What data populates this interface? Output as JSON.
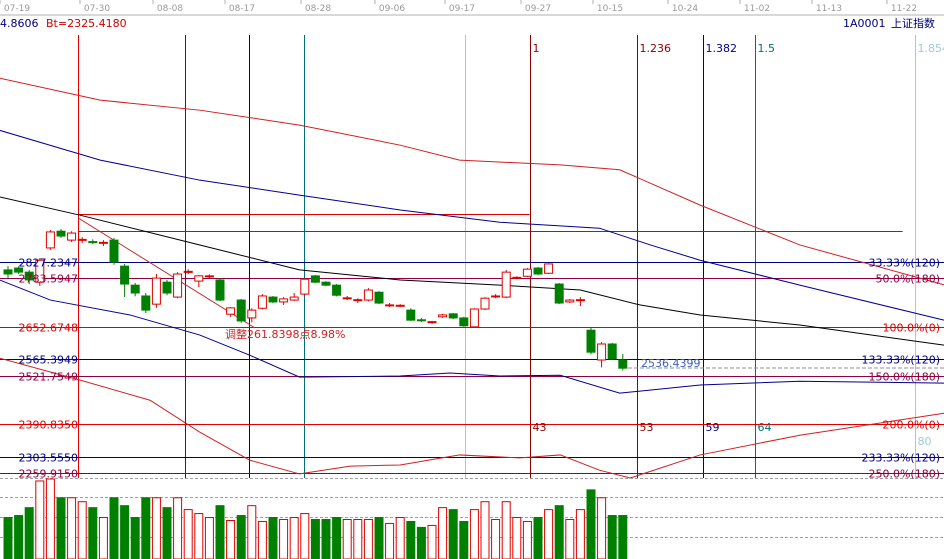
{
  "top_axis": {
    "dates": [
      "07-19",
      "07-30",
      "08-08",
      "08-17",
      "08-28",
      "09-06",
      "09-17",
      "09-27",
      "10-15",
      "10-24",
      "11-02",
      "11-13",
      "11-22"
    ]
  },
  "header": {
    "left_value": "4.8606",
    "bt_label": "Bt=2325.4180",
    "code": "1A0001",
    "index_name": "上证指数"
  },
  "colors": {
    "up": "#e00000",
    "down": "#008000",
    "navy": "#000080",
    "red": "#d00000",
    "purple": "#800060",
    "darkred": "#8b0000",
    "teal": "#007070",
    "lightblue": "#a0c8e0"
  },
  "levels": [
    {
      "price": 2827.2347,
      "left_label": "2827.2347",
      "right_label": "33.33%(120)",
      "color": "#000080"
    },
    {
      "price": 2783.5947,
      "left_label": "2783.5947",
      "right_label": "50.0%(180)",
      "color": "#900040"
    },
    {
      "price": 2652.6748,
      "left_label": "2652.6748",
      "right_label": "100.0%(0)",
      "color": "#e00000"
    },
    {
      "price": 2565.3949,
      "left_label": "2565.3949",
      "right_label": "133.33%(120)",
      "color": "#000080"
    },
    {
      "price": 2521.7549,
      "left_label": "2521.7549",
      "right_label": "150.0%(180)",
      "color": "#900040"
    },
    {
      "price": 2390.835,
      "left_label": "2390.8350",
      "right_label": "200.0%(0)",
      "color": "#e00000"
    },
    {
      "price": 2303.555,
      "left_label": "2303.5550",
      "right_label": "233.33%(120)",
      "color": "#000080"
    },
    {
      "price": 2259.915,
      "left_label": "2259.9150",
      "right_label": "250.0%(180)",
      "color": "#900040"
    }
  ],
  "time_lines": [
    {
      "slot": 6.6,
      "color": "#e00000",
      "top_label": "",
      "bottom_label": ""
    },
    {
      "slot": 16.7,
      "color": "#8b0000",
      "top_label": "",
      "bottom_label": ""
    },
    {
      "slot": 22.7,
      "color": "#000080",
      "top_label": "",
      "bottom_label": ""
    },
    {
      "slot": 27.9,
      "color": "#007070",
      "top_label": "",
      "bottom_label": ""
    },
    {
      "slot": 43.1,
      "color": "#a0c8e0",
      "top_label": "",
      "bottom_label": ""
    },
    {
      "slot": 49.2,
      "color": "#8b0000",
      "top_label": "1",
      "bottom_label": "43"
    },
    {
      "slot": 59.3,
      "color": "#8b0000",
      "top_label": "1.236",
      "bottom_label": "53"
    },
    {
      "slot": 65.6,
      "color": "#000080",
      "top_label": "1.382",
      "bottom_label": "59"
    },
    {
      "slot": 70.5,
      "color": "#007070",
      "top_label": "1.5",
      "bottom_label": "64"
    },
    {
      "slot": 85.6,
      "color": "#a0c8e0",
      "top_label": "1.854",
      "bottom_label": "80"
    }
  ],
  "annotations": {
    "adjustment": "调整261.8398点8.98%",
    "low_marker": "2536.4399"
  },
  "chart_data": {
    "type": "candlestick",
    "ohlc_format": [
      "open",
      "high",
      "low",
      "close"
    ],
    "candles": [
      [
        2806,
        2816,
        2784,
        2795
      ],
      [
        2811,
        2816,
        2795,
        2800
      ],
      [
        2800,
        2806,
        2768,
        2779
      ],
      [
        2773,
        2838,
        2763,
        2832
      ],
      [
        2865,
        2913,
        2860,
        2908
      ],
      [
        2910,
        2916,
        2892,
        2897
      ],
      [
        2886,
        2910,
        2881,
        2905
      ],
      [
        2886,
        2894,
        2878,
        2888
      ],
      [
        2882,
        2888,
        2875,
        2880
      ],
      [
        2878,
        2886,
        2870,
        2880
      ],
      [
        2886,
        2892,
        2820,
        2827
      ],
      [
        2816,
        2822,
        2733,
        2768
      ],
      [
        2765,
        2771,
        2735,
        2744
      ],
      [
        2736,
        2744,
        2690,
        2698
      ],
      [
        2714,
        2795,
        2704,
        2784
      ],
      [
        2773,
        2779,
        2738,
        2744
      ],
      [
        2733,
        2800,
        2730,
        2795
      ],
      [
        2800,
        2808,
        2795,
        2802
      ],
      [
        2776,
        2792,
        2760,
        2790
      ],
      [
        2789,
        2794,
        2784,
        2790
      ],
      [
        2779,
        2784,
        2722,
        2725
      ],
      [
        2687,
        2706,
        2680,
        2704
      ],
      [
        2725,
        2728,
        2664,
        2669
      ],
      [
        2677,
        2703,
        2665,
        2698
      ],
      [
        2703,
        2741,
        2700,
        2736
      ],
      [
        2733,
        2736,
        2717,
        2720
      ],
      [
        2720,
        2733,
        2712,
        2728
      ],
      [
        2725,
        2744,
        2722,
        2733
      ],
      [
        2741,
        2784,
        2738,
        2781
      ],
      [
        2790,
        2792,
        2771,
        2773
      ],
      [
        2773,
        2776,
        2762,
        2765
      ],
      [
        2765,
        2768,
        2735,
        2738
      ],
      [
        2730,
        2736,
        2725,
        2731
      ],
      [
        2725,
        2730,
        2717,
        2726
      ],
      [
        2725,
        2757,
        2722,
        2752
      ],
      [
        2746,
        2749,
        2714,
        2717
      ],
      [
        2712,
        2717,
        2706,
        2712
      ],
      [
        2710,
        2714,
        2706,
        2711
      ],
      [
        2698,
        2703,
        2669,
        2671
      ],
      [
        2672,
        2677,
        2666,
        2671
      ],
      [
        2666,
        2669,
        2661,
        2667
      ],
      [
        2680,
        2688,
        2677,
        2685
      ],
      [
        2688,
        2690,
        2674,
        2677
      ],
      [
        2677,
        2680,
        2653,
        2656
      ],
      [
        2653,
        2703,
        2650,
        2701
      ],
      [
        2701,
        2733,
        2698,
        2730
      ],
      [
        2735,
        2741,
        2730,
        2736
      ],
      [
        2733,
        2806,
        2730,
        2800
      ],
      [
        2784,
        2789,
        2781,
        2786
      ],
      [
        2789,
        2811,
        2787,
        2808
      ],
      [
        2811,
        2814,
        2792,
        2795
      ],
      [
        2797,
        2824,
        2795,
        2822
      ],
      [
        2768,
        2771,
        2714,
        2717
      ],
      [
        2720,
        2728,
        2717,
        2725
      ],
      [
        2725,
        2733,
        2709,
        2726
      ],
      [
        2644,
        2650,
        2579,
        2585
      ],
      [
        2564,
        2612,
        2544,
        2607
      ],
      [
        2607,
        2610,
        2564,
        2567
      ],
      [
        2564,
        2580,
        2536,
        2542
      ]
    ],
    "volume_relative": [
      42,
      44,
      52,
      79,
      81,
      62,
      62,
      58,
      52,
      42,
      62,
      54,
      42,
      62,
      62,
      52,
      62,
      50,
      46,
      42,
      54,
      39,
      44,
      54,
      38,
      42,
      40,
      42,
      46,
      40,
      40,
      42,
      40,
      40,
      40,
      42,
      36,
      42,
      38,
      32,
      34,
      52,
      50,
      38,
      50,
      58,
      40,
      58,
      42,
      38,
      42,
      50,
      54,
      40,
      50,
      70,
      62,
      44,
      44
    ],
    "overlay_lines": [
      {
        "color": "#d02020",
        "points": [
          [
            -0.8,
            3321
          ],
          [
            8.7,
            3262
          ],
          [
            18.1,
            3235
          ],
          [
            27.5,
            3195
          ],
          [
            37,
            3141
          ],
          [
            42.6,
            3101
          ],
          [
            52.1,
            3088
          ],
          [
            57.7,
            3075
          ],
          [
            65.3,
            2980
          ],
          [
            74.7,
            2873
          ],
          [
            88.3,
            2766
          ]
        ]
      },
      {
        "color": "#000090",
        "points": [
          [
            -0.8,
            3181
          ],
          [
            8.7,
            3101
          ],
          [
            18.1,
            3047
          ],
          [
            27.5,
            3007
          ],
          [
            37,
            2967
          ],
          [
            46.4,
            2934
          ],
          [
            55.8,
            2918
          ],
          [
            60.6,
            2873
          ],
          [
            65.3,
            2832
          ],
          [
            74.7,
            2765
          ],
          [
            88.3,
            2671
          ]
        ]
      },
      {
        "color": "#000000",
        "points": [
          [
            -0.8,
            3002
          ],
          [
            6.8,
            2953
          ],
          [
            18.1,
            2873
          ],
          [
            27.5,
            2806
          ],
          [
            37,
            2779
          ],
          [
            46.4,
            2765
          ],
          [
            54,
            2752
          ],
          [
            59.6,
            2712
          ],
          [
            65.3,
            2685
          ],
          [
            74.7,
            2658
          ],
          [
            88.3,
            2604
          ]
        ]
      },
      {
        "color": "#000090",
        "points": [
          [
            -0.8,
            2779
          ],
          [
            4,
            2725
          ],
          [
            11.5,
            2685
          ],
          [
            18.1,
            2631
          ],
          [
            22.8,
            2577
          ],
          [
            27.5,
            2518
          ],
          [
            37,
            2521
          ],
          [
            41.7,
            2529
          ],
          [
            46.4,
            2521
          ],
          [
            52.1,
            2523
          ],
          [
            57.7,
            2475
          ],
          [
            65.3,
            2497
          ],
          [
            74.7,
            2507
          ],
          [
            88.3,
            2502
          ]
        ]
      },
      {
        "color": "#d02020",
        "points": [
          [
            -0.8,
            2569
          ],
          [
            6.8,
            2510
          ],
          [
            13.4,
            2456
          ],
          [
            18.1,
            2370
          ],
          [
            22.8,
            2295
          ],
          [
            27.5,
            2258
          ],
          [
            32.3,
            2279
          ],
          [
            37,
            2282
          ],
          [
            42.6,
            2309
          ],
          [
            48.3,
            2301
          ],
          [
            52.1,
            2309
          ],
          [
            55.8,
            2268
          ],
          [
            58.7,
            2247
          ],
          [
            65.3,
            2309
          ],
          [
            74.7,
            2362
          ],
          [
            88.3,
            2421
          ]
        ]
      }
    ],
    "box_lines": [
      {
        "price": 2957,
        "from_slot": 6.6,
        "to_slot": 49.2,
        "color": "#e00000"
      },
      {
        "price": 2911,
        "from_slot": 6.6,
        "to_slot": 84.4,
        "color": "#e00000"
      }
    ],
    "trend_line": {
      "from": [
        6.6,
        2946
      ],
      "to": [
        23.3,
        2650
      ],
      "color": "#c03030"
    }
  }
}
